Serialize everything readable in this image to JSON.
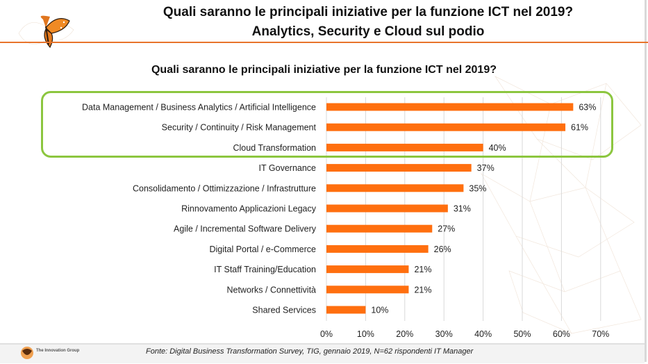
{
  "header": {
    "title_line1": "Quali saranno le principali iniziative per la funzione ICT nel 2019?",
    "title_line2": "Analytics, Security e Cloud sul podio"
  },
  "colors": {
    "bar": "#ff6f0f",
    "highlight": "#8cc63f",
    "accent": "#e8742c"
  },
  "chart_data": {
    "type": "bar",
    "orientation": "horizontal",
    "title": "Quali saranno le principali iniziative per la funzione ICT nel 2019?",
    "categories": [
      "Data Management / Business Analytics / Artificial Intelligence",
      "Security / Continuity / Risk Management",
      "Cloud Transformation",
      "IT Governance",
      "Consolidamento / Ottimizzazione / Infrastrutture",
      "Rinnovamento Applicazioni Legacy",
      "Agile / Incremental Software Delivery",
      "Digital Portal / e-Commerce",
      "IT Staff Training/Education",
      "Networks / Connettività",
      "Shared Services"
    ],
    "values": [
      63,
      61,
      40,
      37,
      35,
      31,
      27,
      26,
      21,
      21,
      10
    ],
    "value_labels": [
      "63%",
      "61%",
      "40%",
      "37%",
      "35%",
      "31%",
      "27%",
      "26%",
      "21%",
      "21%",
      "10%"
    ],
    "xlim": [
      0,
      70
    ],
    "x_ticks": [
      "0%",
      "10%",
      "20%",
      "30%",
      "40%",
      "50%",
      "60%",
      "70%"
    ],
    "grid": true,
    "highlighted_categories": 3
  },
  "footer": {
    "source": "Fonte: Digital Business Transformation Survey, TIG, gennaio 2019, N=62 rispondenti IT Manager",
    "logo_text": "The Innovation Group"
  }
}
